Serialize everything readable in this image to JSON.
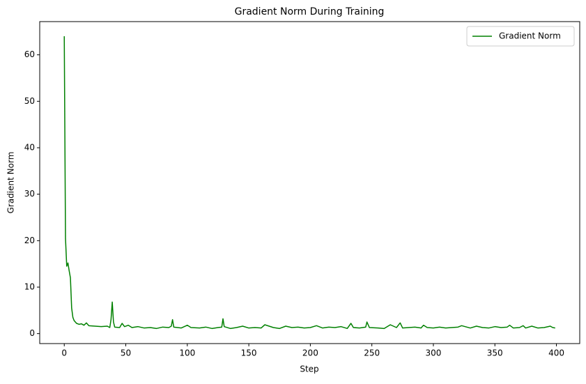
{
  "chart_data": {
    "type": "line",
    "title": "Gradient Norm During Training",
    "x_label": "Step",
    "y_label": "Gradient Norm",
    "x": [
      0,
      1,
      2,
      3,
      4,
      5,
      6,
      7,
      8,
      10,
      12,
      14,
      16,
      18,
      20,
      25,
      30,
      35,
      37,
      38,
      39,
      40,
      41,
      45,
      47,
      49,
      52,
      55,
      60,
      65,
      70,
      75,
      80,
      85,
      87,
      88,
      89,
      95,
      100,
      103,
      110,
      115,
      120,
      125,
      128,
      129,
      130,
      135,
      140,
      145,
      150,
      155,
      160,
      163,
      170,
      175,
      180,
      185,
      190,
      195,
      200,
      205,
      210,
      215,
      220,
      225,
      230,
      233,
      235,
      240,
      245,
      246,
      248,
      255,
      260,
      265,
      270,
      273,
      275,
      280,
      285,
      290,
      292,
      295,
      300,
      305,
      310,
      315,
      320,
      323,
      330,
      335,
      340,
      345,
      350,
      355,
      360,
      362,
      365,
      370,
      373,
      375,
      380,
      385,
      390,
      395,
      397,
      399
    ],
    "series": [
      {
        "name": "Gradient Norm",
        "color": "#008000",
        "values": [
          64,
          20.5,
          14.5,
          15.2,
          13.5,
          12,
          5.5,
          3.5,
          2.8,
          2.2,
          2.0,
          2.1,
          1.8,
          2.3,
          1.7,
          1.6,
          1.5,
          1.6,
          1.3,
          3,
          6.8,
          2.5,
          1.4,
          1.3,
          2.2,
          1.5,
          1.8,
          1.3,
          1.5,
          1.2,
          1.3,
          1.1,
          1.4,
          1.3,
          1.6,
          3.0,
          1.4,
          1.2,
          1.8,
          1.3,
          1.2,
          1.4,
          1.1,
          1.3,
          1.4,
          3.2,
          1.5,
          1.1,
          1.3,
          1.6,
          1.2,
          1.3,
          1.2,
          1.9,
          1.3,
          1.1,
          1.6,
          1.3,
          1.4,
          1.2,
          1.3,
          1.7,
          1.2,
          1.4,
          1.3,
          1.5,
          1.1,
          2.2,
          1.3,
          1.2,
          1.4,
          2.5,
          1.3,
          1.2,
          1.1,
          1.9,
          1.3,
          2.3,
          1.2,
          1.3,
          1.4,
          1.2,
          1.8,
          1.3,
          1.2,
          1.4,
          1.2,
          1.3,
          1.4,
          1.7,
          1.2,
          1.6,
          1.3,
          1.2,
          1.5,
          1.3,
          1.4,
          1.8,
          1.2,
          1.3,
          1.7,
          1.2,
          1.6,
          1.2,
          1.3,
          1.6,
          1.3,
          1.2
        ]
      }
    ],
    "xlim": [
      -19.95,
      418.95
    ],
    "xticks": [
      0,
      50,
      100,
      150,
      200,
      250,
      300,
      350,
      400
    ],
    "ylim": [
      -2.15,
      67.15
    ],
    "yticks": [
      0,
      10,
      20,
      30,
      40,
      50,
      60
    ],
    "grid": false,
    "legend": "upper right"
  }
}
